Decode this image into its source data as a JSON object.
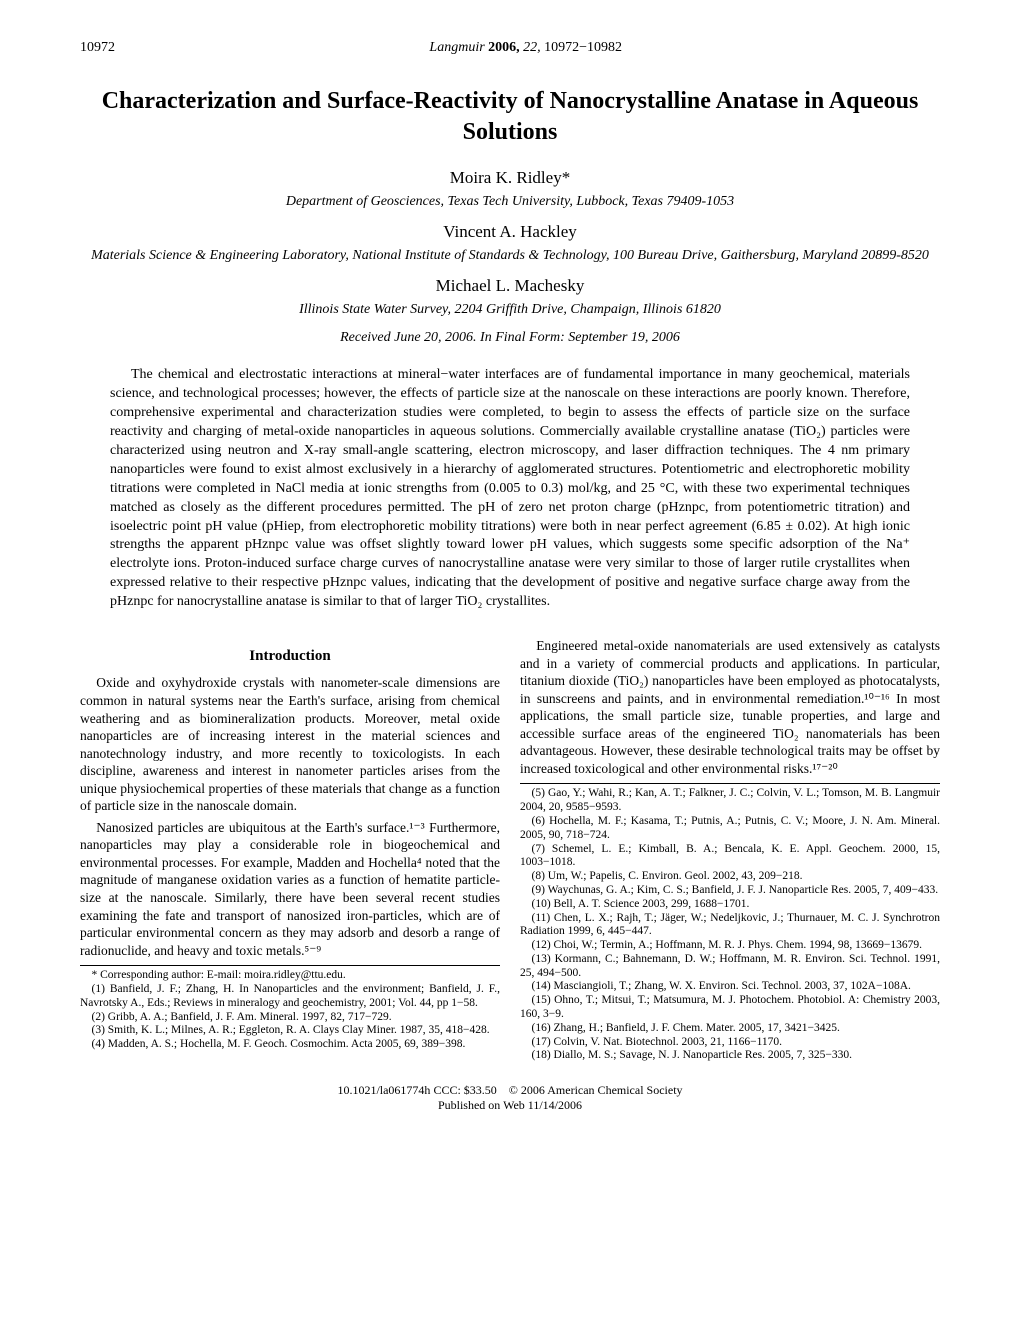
{
  "header": {
    "page_left": "10972",
    "journal_name": "Langmuir",
    "year_bold": "2006,",
    "vol_issue": "22,",
    "pages": "10972−10982"
  },
  "title": "Characterization and Surface-Reactivity of Nanocrystalline Anatase in Aqueous Solutions",
  "authors": [
    {
      "name": "Moira K. Ridley*",
      "affiliation": "Department of Geosciences, Texas Tech University, Lubbock, Texas 79409-1053"
    },
    {
      "name": "Vincent A. Hackley",
      "affiliation": "Materials Science & Engineering Laboratory, National Institute of Standards & Technology, 100 Bureau Drive, Gaithersburg, Maryland 20899-8520"
    },
    {
      "name": "Michael L. Machesky",
      "affiliation": "Illinois State Water Survey, 2204 Griffith Drive, Champaign, Illinois 61820"
    }
  ],
  "received": "Received June 20, 2006. In Final Form: September 19, 2006",
  "abstract": "The chemical and electrostatic interactions at mineral−water interfaces are of fundamental importance in many geochemical, materials science, and technological processes; however, the effects of particle size at the nanoscale on these interactions are poorly known. Therefore, comprehensive experimental and characterization studies were completed, to begin to assess the effects of particle size on the surface reactivity and charging of metal-oxide nanoparticles in aqueous solutions. Commercially available crystalline anatase (TiO₂) particles were characterized using neutron and X-ray small-angle scattering, electron microscopy, and laser diffraction techniques. The 4 nm primary nanoparticles were found to exist almost exclusively in a hierarchy of agglomerated structures. Potentiometric and electrophoretic mobility titrations were completed in NaCl media at ionic strengths from (0.005 to 0.3) mol/kg, and 25 °C, with these two experimental techniques matched as closely as the different procedures permitted. The pH of zero net proton charge (pHznpc, from potentiometric titration) and isoelectric point pH value (pHiep, from electrophoretic mobility titrations) were both in near perfect agreement (6.85 ± 0.02). At high ionic strengths the apparent pHznpc value was offset slightly toward lower pH values, which suggests some specific adsorption of the Na⁺ electrolyte ions. Proton-induced surface charge curves of nanocrystalline anatase were very similar to those of larger rutile crystallites when expressed relative to their respective pHznpc values, indicating that the development of positive and negative surface charge away from the pHznpc for nanocrystalline anatase is similar to that of larger TiO₂ crystallites.",
  "intro_heading": "Introduction",
  "intro_paras": [
    "Oxide and oxyhydroxide crystals with nanometer-scale dimensions are common in natural systems near the Earth's surface, arising from chemical weathering and as biomineralization products. Moreover, metal oxide nanoparticles are of increasing interest in the material sciences and nanotechnology industry, and more recently to toxicologists. In each discipline, awareness and interest in nanometer particles arises from the unique physiochemical properties of these materials that change as a function of particle size in the nanoscale domain.",
    "Nanosized particles are ubiquitous at the Earth's surface.¹⁻³ Furthermore, nanoparticles may play a considerable role in biogeochemical and environmental processes. For example, Madden and Hochella⁴ noted that the magnitude of manganese oxidation varies as a function of hematite particle-size at the nanoscale. Similarly, there have been several recent studies examining the fate and transport of nanosized iron-particles, which are of particular environmental concern as they may adsorb and desorb a range of radionuclide, and heavy and toxic metals.⁵⁻⁹"
  ],
  "col2_para": "Engineered metal-oxide nanomaterials are used extensively as catalysts and in a variety of commercial products and applications. In particular, titanium dioxide (TiO₂) nanoparticles have been employed as photocatalysts, in sunscreens and paints, and in environmental remediation.¹⁰⁻¹⁶ In most applications, the small particle size, tunable properties, and large and accessible surface areas of the engineered TiO₂ nanomaterials has been advantageous. However, these desirable technological traits may be offset by increased toxicological and other environmental risks.¹⁷⁻²⁰",
  "footnotes_left": [
    "* Corresponding author: E-mail: moira.ridley@ttu.edu.",
    "(1) Banfield, J. F.; Zhang, H. In Nanoparticles and the environment; Banfield, J. F., Navrotsky A., Eds.; Reviews in mineralogy and geochemistry, 2001; Vol. 44, pp 1−58.",
    "(2) Gribb, A. A.; Banfield, J. F. Am. Mineral. 1997, 82, 717−729.",
    "(3) Smith, K. L.; Milnes, A. R.; Eggleton, R. A. Clays Clay Miner. 1987, 35, 418−428.",
    "(4) Madden, A. S.; Hochella, M. F. Geoch. Cosmochim. Acta 2005, 69, 389−398."
  ],
  "refs_right": [
    "(5) Gao, Y.; Wahi, R.; Kan, A. T.; Falkner, J. C.; Colvin, V. L.; Tomson, M. B. Langmuir 2004, 20, 9585−9593.",
    "(6) Hochella, M. F.; Kasama, T.; Putnis, A.; Putnis, C. V.; Moore, J. N. Am. Mineral. 2005, 90, 718−724.",
    "(7) Schemel, L. E.; Kimball, B. A.; Bencala, K. E. Appl. Geochem. 2000, 15, 1003−1018.",
    "(8) Um, W.; Papelis, C. Environ. Geol. 2002, 43, 209−218.",
    "(9) Waychunas, G. A.; Kim, C. S.; Banfield, J. F. J. Nanoparticle Res. 2005, 7, 409−433.",
    "(10) Bell, A. T. Science 2003, 299, 1688−1701.",
    "(11) Chen, L. X.; Rajh, T.; Jäger, W.; Nedeljkovic, J.; Thurnauer, M. C. J. Synchrotron Radiation 1999, 6, 445−447.",
    "(12) Choi, W.; Termin, A.; Hoffmann, M. R. J. Phys. Chem. 1994, 98, 13669−13679.",
    "(13) Kormann, C.; Bahnemann, D. W.; Hoffmann, M. R. Environ. Sci. Technol. 1991, 25, 494−500.",
    "(14) Masciangioli, T.; Zhang, W. X. Environ. Sci. Technol. 2003, 37, 102A−108A.",
    "(15) Ohno, T.; Mitsui, T.; Matsumura, M. J. Photochem. Photobiol. A: Chemistry 2003, 160, 3−9.",
    "(16) Zhang, H.; Banfield, J. F. Chem. Mater. 2005, 17, 3421−3425.",
    "(17) Colvin, V. Nat. Biotechnol. 2003, 21, 1166−1170.",
    "(18) Diallo, M. S.; Savage, N. J. Nanoparticle Res. 2005, 7, 325−330."
  ],
  "bottom": {
    "doi": "10.1021/la061774h",
    "ccc": "CCC: $33.50",
    "copyright": "© 2006 American Chemical Society",
    "pub": "Published on Web 11/14/2006"
  }
}
